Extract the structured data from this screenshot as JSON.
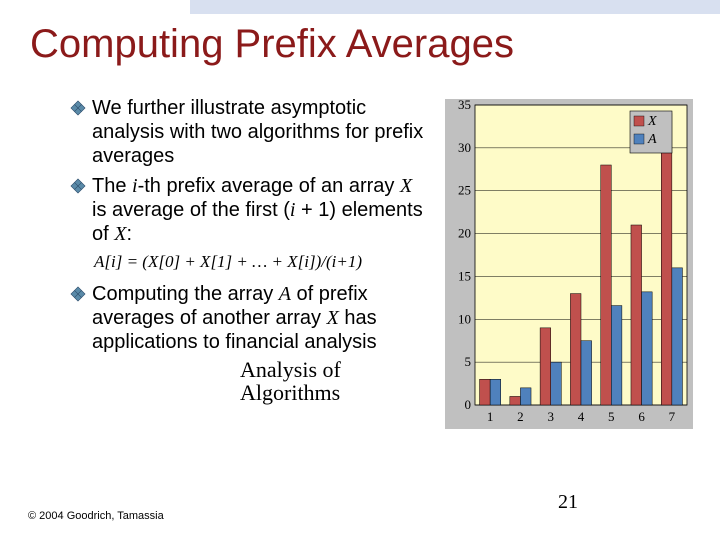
{
  "title": "Computing Prefix Averages",
  "bullets": {
    "b1": "We further illustrate asymptotic analysis with two algorithms for prefix averages",
    "b2_pre": "The ",
    "b2_i": "i",
    "b2_mid1": "-th prefix average of an array ",
    "b2_x": "X",
    "b2_mid2": " is average of the first (",
    "b2_ip": "i",
    "b2_mid3": " + 1) elements of ",
    "b2_x2": "X",
    "b2_end": ":",
    "b3_pre": "Computing the array ",
    "b3_a": "A",
    "b3_mid1": " of prefix averages of another array ",
    "b3_x": "X",
    "b3_end": " has applications to financial analysis"
  },
  "formula": "A[i] =  (X[0] + X[1] + … + X[i])/(i+1)",
  "sub_line1": "Analysis of",
  "sub_line2": "Algorithms",
  "copyright": "© 2004 Goodrich, Tamassia",
  "page_num": "21",
  "chart": {
    "type": "bar",
    "categories": [
      "1",
      "2",
      "3",
      "4",
      "5",
      "6",
      "7"
    ],
    "series": [
      {
        "name": "X",
        "color": "#c0504d",
        "values": [
          3,
          1,
          9,
          13,
          28,
          21,
          34
        ]
      },
      {
        "name": "A",
        "color": "#4f81bd",
        "values": [
          3,
          2,
          5,
          7.5,
          11.6,
          13.2,
          16
        ]
      }
    ],
    "ylim": [
      0,
      35
    ],
    "ytick_step": 5,
    "plot_bg": "#fefbc8",
    "panel_bg": "#c0c0c0",
    "grid_color": "#000000",
    "axis_fontsize": 13,
    "legend_fontsize": 14,
    "bar_group_gap": 0.3
  }
}
